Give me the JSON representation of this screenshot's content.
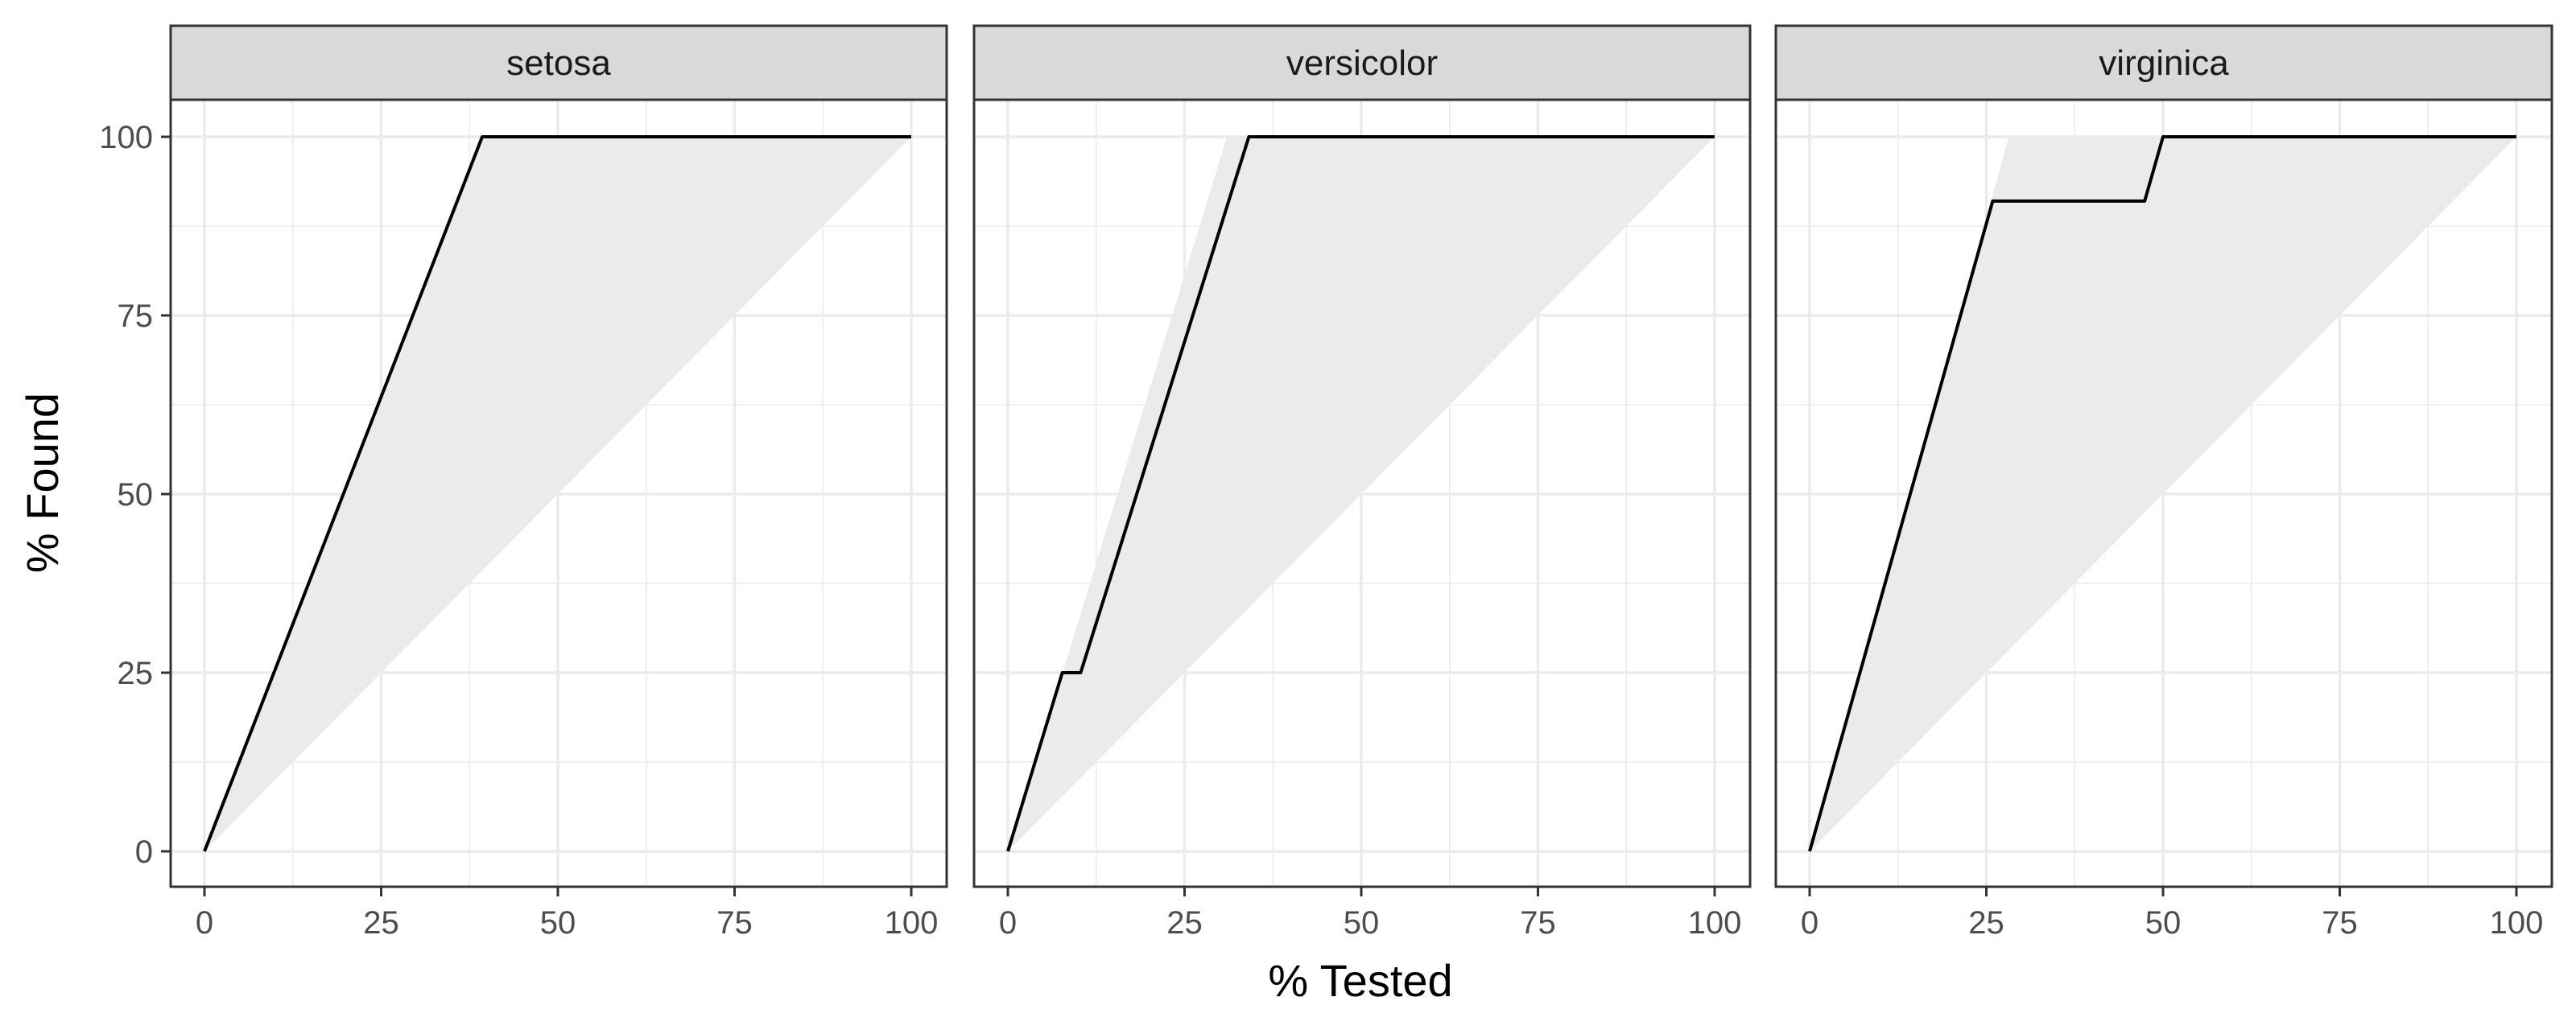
{
  "chart_data": {
    "type": "line",
    "xlabel": "% Tested",
    "ylabel": "% Found",
    "xlim": [
      0,
      100
    ],
    "ylim": [
      0,
      100
    ],
    "x_ticks": [
      0,
      25,
      50,
      75,
      100
    ],
    "y_ticks": [
      0,
      25,
      50,
      75,
      100
    ],
    "grid": true,
    "colors": {
      "line": "#000000",
      "band": "#ebebeb",
      "strip_fill": "#d9d9d9",
      "border": "#333333",
      "grid": "#ebebeb"
    },
    "panels": [
      {
        "facet": "setosa",
        "line": {
          "x": [
            0,
            39.3,
            100
          ],
          "y": [
            0,
            100,
            100
          ]
        },
        "band_upper": {
          "x": [
            0,
            39.3,
            100
          ],
          "y": [
            0,
            100,
            100
          ]
        }
      },
      {
        "facet": "versicolor",
        "line": {
          "x": [
            0,
            7.7,
            10.3,
            34.1,
            100
          ],
          "y": [
            0,
            25,
            25,
            100,
            100
          ]
        },
        "band_upper": {
          "x": [
            0,
            31.0,
            100
          ],
          "y": [
            0,
            100,
            100
          ]
        }
      },
      {
        "facet": "virginica",
        "line": {
          "x": [
            0,
            25.9,
            47.4,
            50.0,
            100
          ],
          "y": [
            0,
            91,
            91,
            100,
            100
          ]
        },
        "band_upper": {
          "x": [
            0,
            28.2,
            100
          ],
          "y": [
            0,
            100,
            100
          ]
        }
      }
    ]
  }
}
